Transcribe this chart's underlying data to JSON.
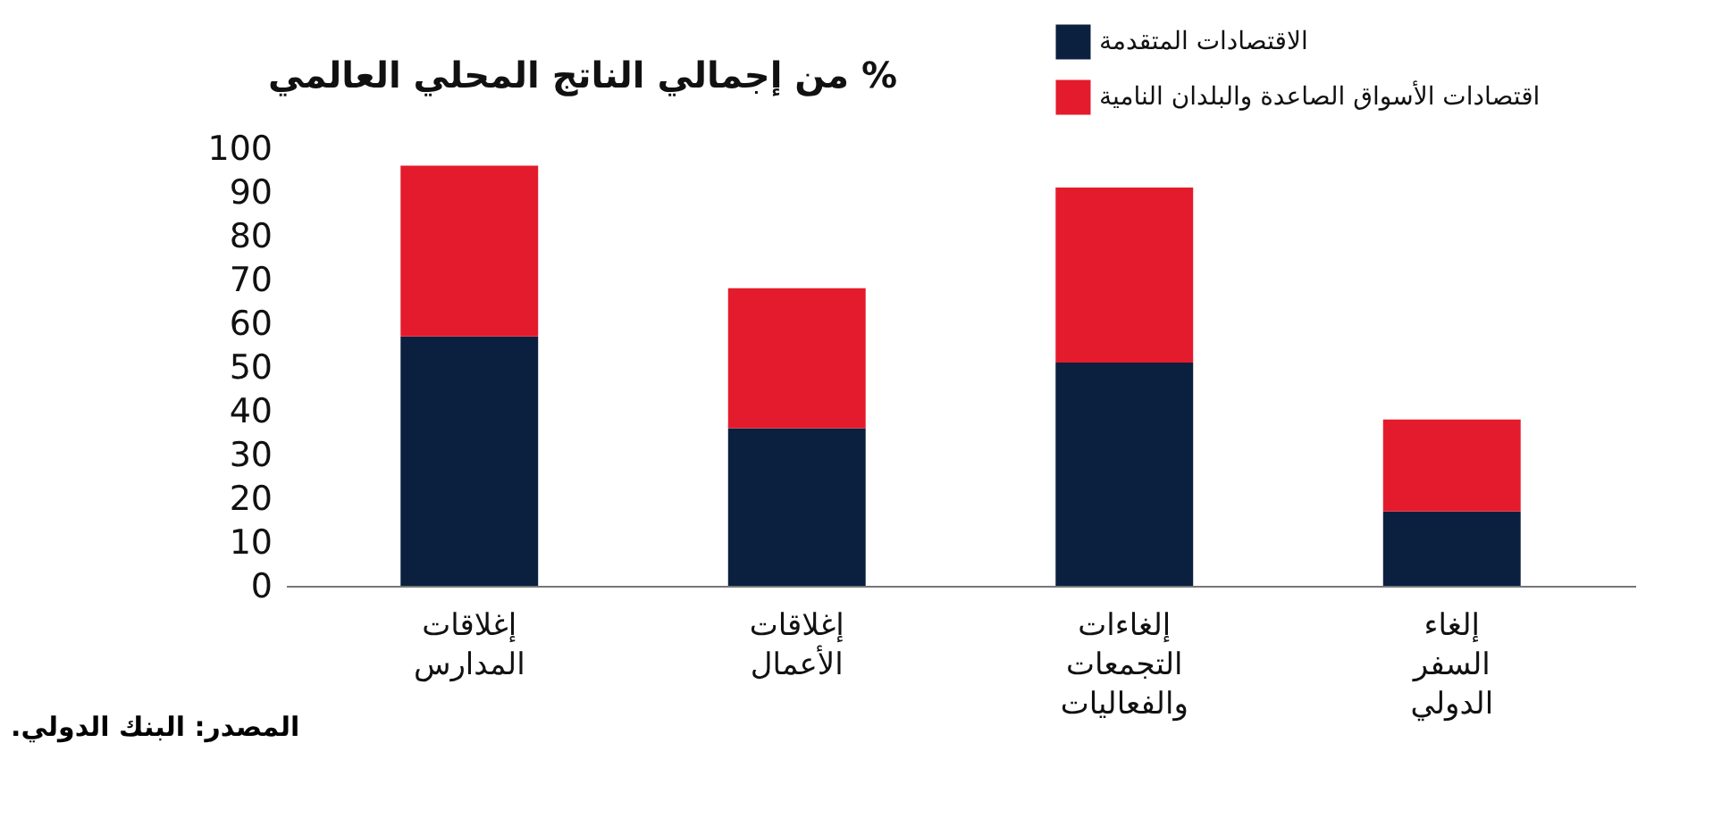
{
  "chart_data": {
    "type": "bar",
    "title": "% من إجمالي الناتج المحلي العالمي",
    "stacked": true,
    "legend": "top right",
    "categories": [
      "إغلاقات المدارس",
      "إغلاقات الأعمال",
      "إلغاءات التجمعات والفعاليات",
      "إلغاء السفر الدولي"
    ],
    "series": [
      {
        "name": "الاقتصادات المتقدمة",
        "color": "#0b1f3f",
        "values": [
          57,
          36,
          51,
          17
        ]
      },
      {
        "name": "اقتصادات الأسواق الصاعدة والبلدان النامية",
        "color": "#e41b2c",
        "values": [
          39,
          32,
          40,
          21
        ]
      }
    ],
    "ylim": [
      0,
      100
    ],
    "yticks": [
      0,
      10,
      20,
      30,
      40,
      50,
      60,
      70,
      80,
      90,
      100
    ],
    "annotations": [
      "المصدر: البنك الدولي."
    ]
  }
}
